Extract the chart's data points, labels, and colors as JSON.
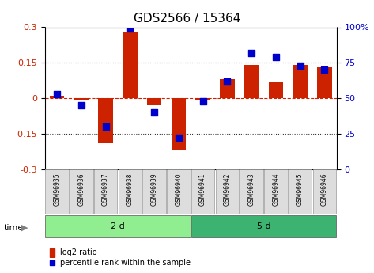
{
  "title": "GDS2566 / 15364",
  "samples": [
    "GSM96935",
    "GSM96936",
    "GSM96937",
    "GSM96938",
    "GSM96939",
    "GSM96940",
    "GSM96941",
    "GSM96942",
    "GSM96943",
    "GSM96944",
    "GSM96945",
    "GSM96946"
  ],
  "log2_ratio": [
    0.01,
    -0.01,
    -0.19,
    0.28,
    -0.03,
    -0.22,
    -0.01,
    0.08,
    0.14,
    0.07,
    0.14,
    0.13
  ],
  "percentile_rank": [
    53,
    45,
    30,
    99,
    40,
    22,
    48,
    62,
    82,
    79,
    73,
    70
  ],
  "groups": [
    {
      "label": "2 d",
      "start": 0,
      "end": 6,
      "color": "#90EE90"
    },
    {
      "label": "5 d",
      "start": 6,
      "end": 12,
      "color": "#3CB371"
    }
  ],
  "bar_color": "#CC2200",
  "dot_color": "#0000CC",
  "ylim_left": [
    -0.3,
    0.3
  ],
  "ylim_right": [
    0,
    100
  ],
  "yticks_left": [
    -0.3,
    -0.15,
    0.0,
    0.15,
    0.3
  ],
  "ytick_labels_left": [
    "-0.3",
    "-0.15",
    "0",
    "0.15",
    "0.3"
  ],
  "yticks_right": [
    0,
    25,
    50,
    75,
    100
  ],
  "ytick_labels_right": [
    "0",
    "25",
    "50",
    "75",
    "100%"
  ],
  "hline_color": "#CC2200",
  "dotted_color": "#333333",
  "background_plot": "#FFFFFF",
  "bar_width": 0.6,
  "dot_size": 40,
  "legend_bar_label": "log2 ratio",
  "legend_dot_label": "percentile rank within the sample",
  "time_label": "time",
  "title_fontsize": 11,
  "axis_fontsize": 8,
  "label_fontsize": 8
}
